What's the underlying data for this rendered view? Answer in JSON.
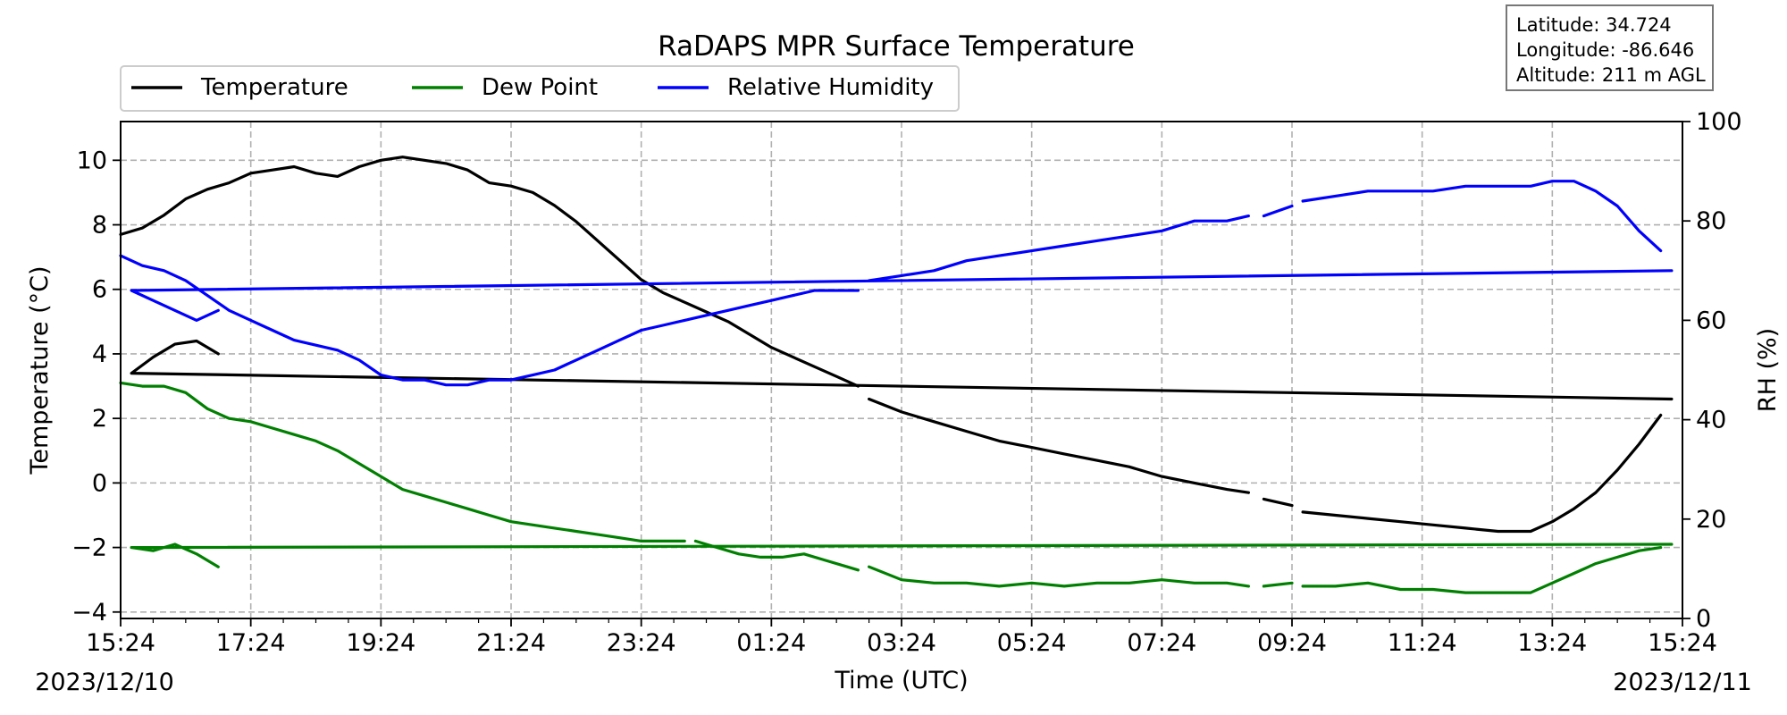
{
  "chart_data": {
    "type": "line",
    "title": "RaDAPS MPR Surface Temperature",
    "xlabel": "Time (UTC)",
    "ylabel": "Temperature ($^\\circ$C)",
    "ylabel_display": "Temperature (°C)",
    "y2label": "RH (%)",
    "ylim": [
      -4.2,
      11.2
    ],
    "y2lim": [
      0,
      100
    ],
    "x_start": "2023-12-10 15:24",
    "x_end": "2023-12-11 15:24",
    "x_ticks": [
      "15:24",
      "17:24",
      "19:24",
      "21:24",
      "23:24",
      "01:24",
      "03:24",
      "05:24",
      "07:24",
      "09:24",
      "11:24",
      "13:24",
      "15:24"
    ],
    "y_ticks": [
      -4,
      -2,
      0,
      2,
      4,
      6,
      8,
      10
    ],
    "y2_ticks": [
      0,
      20,
      40,
      60,
      80,
      100
    ],
    "date_left": "2023/12/10",
    "date_right": "2023/12/11",
    "grid": true,
    "legend_position": "top-left, above plot",
    "colors": {
      "temperature": "#000000",
      "dew_point": "#008000",
      "rh": "#0000ff"
    },
    "series": [
      {
        "name": "Temperature",
        "axis": "left",
        "color": "#000000",
        "segments": [
          [
            [
              "15:24",
              7.7
            ],
            [
              "15:44",
              7.9
            ],
            [
              "16:04",
              8.3
            ],
            [
              "16:24",
              8.8
            ],
            [
              "16:44",
              9.1
            ],
            [
              "17:04",
              9.3
            ],
            [
              "17:24",
              9.6
            ],
            [
              "17:44",
              9.7
            ],
            [
              "18:04",
              9.8
            ],
            [
              "18:24",
              9.6
            ],
            [
              "18:44",
              9.5
            ],
            [
              "19:04",
              9.8
            ],
            [
              "19:24",
              10.0
            ],
            [
              "19:44",
              10.1
            ],
            [
              "20:04",
              10.0
            ],
            [
              "20:24",
              9.9
            ],
            [
              "20:44",
              9.7
            ],
            [
              "21:04",
              9.3
            ],
            [
              "21:24",
              9.2
            ],
            [
              "21:44",
              9.0
            ],
            [
              "22:04",
              8.6
            ],
            [
              "22:24",
              8.1
            ],
            [
              "22:44",
              7.5
            ],
            [
              "23:04",
              6.9
            ],
            [
              "23:24",
              6.3
            ],
            [
              "23:44",
              5.9
            ],
            [
              "00:04",
              5.6
            ],
            [
              "00:24",
              5.3
            ],
            [
              "00:44",
              5.0
            ],
            [
              "01:04",
              4.6
            ],
            [
              "01:24",
              4.2
            ],
            [
              "01:44",
              3.9
            ],
            [
              "02:04",
              3.6
            ],
            [
              "02:24",
              3.3
            ],
            [
              "02:44",
              3.0
            ]
          ],
          [
            [
              "02:54",
              2.6
            ],
            [
              "03:24",
              2.2
            ],
            [
              "03:54",
              1.9
            ],
            [
              "04:24",
              1.6
            ],
            [
              "04:54",
              1.3
            ],
            [
              "05:24",
              1.1
            ],
            [
              "05:54",
              0.9
            ],
            [
              "06:24",
              0.7
            ],
            [
              "06:54",
              0.5
            ],
            [
              "07:24",
              0.2
            ],
            [
              "07:54",
              0.0
            ],
            [
              "08:24",
              -0.2
            ],
            [
              "08:44",
              -0.3
            ]
          ],
          [
            [
              "08:58",
              -0.5
            ],
            [
              "09:24",
              -0.7
            ]
          ],
          [
            [
              "09:34",
              -0.9
            ],
            [
              "10:04",
              -1.0
            ],
            [
              "10:34",
              -1.1
            ],
            [
              "11:04",
              -1.2
            ],
            [
              "11:34",
              -1.3
            ],
            [
              "12:04",
              -1.4
            ],
            [
              "12:34",
              -1.5
            ],
            [
              "13:04",
              -1.5
            ],
            [
              "13:24",
              -1.2
            ],
            [
              "13:44",
              -0.8
            ],
            [
              "14:04",
              -0.3
            ],
            [
              "14:24",
              0.4
            ],
            [
              "14:44",
              1.2
            ],
            [
              "15:04",
              2.1
            ]
          ],
          [
            [
              "15:14",
              2.6
            ],
            [
              "15:34",
              3.4
            ],
            [
              "15:54",
              3.9
            ],
            [
              "16:14",
              4.3
            ],
            [
              "16:34",
              4.4
            ],
            [
              "16:54",
              4.0
            ]
          ]
        ]
      },
      {
        "name": "Dew Point",
        "axis": "left",
        "color": "#008000",
        "segments": [
          [
            [
              "15:24",
              3.1
            ],
            [
              "15:44",
              3.0
            ],
            [
              "16:04",
              3.0
            ],
            [
              "16:24",
              2.8
            ],
            [
              "16:44",
              2.3
            ],
            [
              "17:04",
              2.0
            ],
            [
              "17:24",
              1.9
            ],
            [
              "17:44",
              1.7
            ],
            [
              "18:04",
              1.5
            ],
            [
              "18:24",
              1.3
            ],
            [
              "18:44",
              1.0
            ],
            [
              "19:04",
              0.6
            ],
            [
              "19:24",
              0.2
            ],
            [
              "19:44",
              -0.2
            ],
            [
              "20:04",
              -0.4
            ],
            [
              "20:24",
              -0.6
            ],
            [
              "20:44",
              -0.8
            ],
            [
              "21:04",
              -1.0
            ],
            [
              "21:24",
              -1.2
            ],
            [
              "21:44",
              -1.3
            ],
            [
              "22:04",
              -1.4
            ],
            [
              "22:24",
              -1.5
            ],
            [
              "22:44",
              -1.6
            ],
            [
              "23:04",
              -1.7
            ],
            [
              "23:24",
              -1.8
            ],
            [
              "23:44",
              -1.8
            ],
            [
              "00:04",
              -1.8
            ]
          ],
          [
            [
              "00:14",
              -1.8
            ],
            [
              "00:34",
              -2.0
            ],
            [
              "00:54",
              -2.2
            ],
            [
              "01:14",
              -2.3
            ],
            [
              "01:34",
              -2.3
            ],
            [
              "01:54",
              -2.2
            ],
            [
              "02:14",
              -2.4
            ],
            [
              "02:34",
              -2.6
            ],
            [
              "02:44",
              -2.7
            ]
          ],
          [
            [
              "02:54",
              -2.6
            ],
            [
              "03:24",
              -3.0
            ],
            [
              "03:54",
              -3.1
            ],
            [
              "04:24",
              -3.1
            ],
            [
              "04:54",
              -3.2
            ],
            [
              "05:24",
              -3.1
            ],
            [
              "05:54",
              -3.2
            ],
            [
              "06:24",
              -3.1
            ],
            [
              "06:54",
              -3.1
            ],
            [
              "07:24",
              -3.0
            ],
            [
              "07:54",
              -3.1
            ],
            [
              "08:24",
              -3.1
            ],
            [
              "08:44",
              -3.2
            ]
          ],
          [
            [
              "08:58",
              -3.2
            ],
            [
              "09:24",
              -3.1
            ]
          ],
          [
            [
              "09:34",
              -3.2
            ],
            [
              "10:04",
              -3.2
            ],
            [
              "10:34",
              -3.1
            ],
            [
              "11:04",
              -3.3
            ],
            [
              "11:34",
              -3.3
            ],
            [
              "12:04",
              -3.4
            ],
            [
              "12:34",
              -3.4
            ],
            [
              "13:04",
              -3.4
            ],
            [
              "13:24",
              -3.1
            ],
            [
              "13:44",
              -2.8
            ],
            [
              "14:04",
              -2.5
            ],
            [
              "14:24",
              -2.3
            ],
            [
              "14:44",
              -2.1
            ],
            [
              "15:04",
              -2.0
            ]
          ],
          [
            [
              "15:14",
              -1.9
            ],
            [
              "15:34",
              -2.0
            ],
            [
              "15:54",
              -2.1
            ],
            [
              "16:14",
              -1.9
            ],
            [
              "16:34",
              -2.2
            ],
            [
              "16:54",
              -2.6
            ]
          ]
        ]
      },
      {
        "name": "Relative Humidity",
        "axis": "right",
        "color": "#0000ff",
        "segments": [
          [
            [
              "15:24",
              73
            ],
            [
              "15:44",
              71
            ],
            [
              "16:04",
              70
            ],
            [
              "16:24",
              68
            ],
            [
              "16:44",
              65
            ],
            [
              "17:04",
              62
            ],
            [
              "17:24",
              60
            ],
            [
              "17:44",
              58
            ],
            [
              "18:04",
              56
            ],
            [
              "18:24",
              55
            ],
            [
              "18:44",
              54
            ],
            [
              "19:04",
              52
            ],
            [
              "19:24",
              49
            ],
            [
              "19:44",
              48
            ],
            [
              "20:04",
              48
            ],
            [
              "20:24",
              47
            ],
            [
              "20:44",
              47
            ],
            [
              "21:04",
              48
            ],
            [
              "21:24",
              48
            ],
            [
              "21:44",
              49
            ],
            [
              "22:04",
              50
            ],
            [
              "22:24",
              52
            ],
            [
              "22:44",
              54
            ],
            [
              "23:04",
              56
            ],
            [
              "23:24",
              58
            ],
            [
              "23:44",
              59
            ],
            [
              "00:04",
              60
            ],
            [
              "00:24",
              61
            ],
            [
              "00:44",
              62
            ],
            [
              "01:04",
              63
            ],
            [
              "01:24",
              64
            ],
            [
              "01:44",
              65
            ],
            [
              "02:04",
              66
            ],
            [
              "02:24",
              66
            ],
            [
              "02:44",
              66
            ]
          ],
          [
            [
              "02:54",
              68
            ],
            [
              "03:24",
              69
            ],
            [
              "03:54",
              70
            ],
            [
              "04:24",
              72
            ],
            [
              "04:54",
              73
            ],
            [
              "05:24",
              74
            ],
            [
              "05:54",
              75
            ],
            [
              "06:24",
              76
            ],
            [
              "06:54",
              77
            ],
            [
              "07:24",
              78
            ],
            [
              "07:54",
              80
            ],
            [
              "08:24",
              80
            ],
            [
              "08:44",
              81
            ]
          ],
          [
            [
              "08:58",
              81
            ],
            [
              "09:24",
              83
            ]
          ],
          [
            [
              "09:34",
              84
            ],
            [
              "10:04",
              85
            ],
            [
              "10:34",
              86
            ],
            [
              "11:04",
              86
            ],
            [
              "11:34",
              86
            ],
            [
              "12:04",
              87
            ],
            [
              "12:34",
              87
            ],
            [
              "13:04",
              87
            ],
            [
              "13:24",
              88
            ],
            [
              "13:44",
              88
            ],
            [
              "14:04",
              86
            ],
            [
              "14:24",
              83
            ],
            [
              "14:44",
              78
            ],
            [
              "15:04",
              74
            ]
          ],
          [
            [
              "15:14",
              70
            ],
            [
              "15:34",
              66
            ],
            [
              "15:54",
              64
            ],
            [
              "16:14",
              62
            ],
            [
              "16:34",
              60
            ],
            [
              "16:54",
              62
            ]
          ]
        ]
      }
    ]
  },
  "info_box": {
    "latitude": "Latitude: 34.724",
    "longitude": "Longitude: -86.646",
    "altitude": "Altitude: 211 m AGL"
  }
}
